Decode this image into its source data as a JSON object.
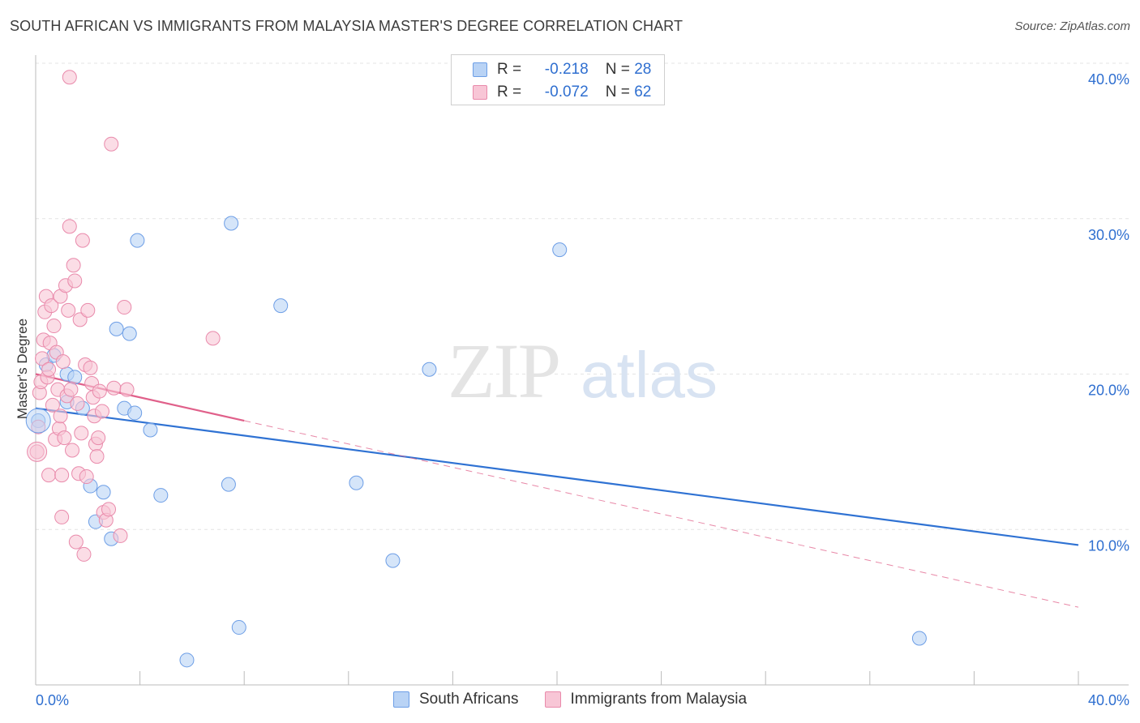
{
  "title": "SOUTH AFRICAN VS IMMIGRANTS FROM MALAYSIA MASTER'S DEGREE CORRELATION CHART",
  "source": "Source: ZipAtlas.com",
  "watermark": {
    "zip": "ZIP",
    "atlas": "atlas"
  },
  "legend_top": [
    {
      "r_label": "R =",
      "r_value": "-0.218",
      "n_label": "N =",
      "n_value": "28"
    },
    {
      "r_label": "R =",
      "r_value": "-0.072",
      "n_label": "N =",
      "n_value": "62"
    }
  ],
  "colors": {
    "blue_fill": "#b9d3f5",
    "blue_stroke": "#6d9ee6",
    "blue_line": "#2f72d3",
    "pink_fill": "#f8c6d6",
    "pink_stroke": "#e98aab",
    "pink_line": "#e0608a",
    "tick_text": "#2f6fd0",
    "grid": "#e4e4e4"
  },
  "chart_data": {
    "type": "scatter",
    "title": "SOUTH AFRICAN VS IMMIGRANTS FROM MALAYSIA MASTER'S DEGREE CORRELATION CHART",
    "xlabel": "",
    "ylabel": "Master's Degree",
    "xlim": [
      0,
      40
    ],
    "ylim": [
      0,
      40
    ],
    "x_tick_labels": [
      "0.0%",
      "40.0%"
    ],
    "y_ticks": [
      10,
      20,
      30,
      40
    ],
    "y_tick_labels": [
      "10.0%",
      "20.0%",
      "30.0%",
      "40.0%"
    ],
    "series": [
      {
        "name": "South Africans",
        "color": "blue",
        "r": -0.218,
        "n": 28,
        "trend": {
          "x0": 0,
          "y0": 17.8,
          "x1": 40,
          "y1": 9.0,
          "dashed_from": null
        },
        "points": [
          [
            0.1,
            17.0
          ],
          [
            0.4,
            20.6
          ],
          [
            0.7,
            21.2
          ],
          [
            1.2,
            20.0
          ],
          [
            1.2,
            18.2
          ],
          [
            1.5,
            19.8
          ],
          [
            1.8,
            17.8
          ],
          [
            2.1,
            12.8
          ],
          [
            2.3,
            10.5
          ],
          [
            2.6,
            12.4
          ],
          [
            2.9,
            9.4
          ],
          [
            3.1,
            22.9
          ],
          [
            3.4,
            17.8
          ],
          [
            3.6,
            22.6
          ],
          [
            3.8,
            17.5
          ],
          [
            3.9,
            28.6
          ],
          [
            4.4,
            16.4
          ],
          [
            4.8,
            12.2
          ],
          [
            5.8,
            1.6
          ],
          [
            7.4,
            12.9
          ],
          [
            7.5,
            29.7
          ],
          [
            7.8,
            3.7
          ],
          [
            9.4,
            24.4
          ],
          [
            12.3,
            13.0
          ],
          [
            13.7,
            8.0
          ],
          [
            15.1,
            20.3
          ],
          [
            20.1,
            28.0
          ],
          [
            33.9,
            3.0
          ]
        ]
      },
      {
        "name": "Immigrants from Malaysia",
        "color": "pink",
        "r": -0.072,
        "n": 62,
        "trend": {
          "x0": 0,
          "y0": 20.0,
          "x1": 40,
          "y1": 5.0,
          "solid_to_x": 8.0
        },
        "points": [
          [
            0.05,
            15.0
          ],
          [
            0.1,
            16.6
          ],
          [
            0.15,
            18.8
          ],
          [
            0.2,
            19.5
          ],
          [
            0.25,
            21.0
          ],
          [
            0.3,
            22.2
          ],
          [
            0.35,
            24.0
          ],
          [
            0.4,
            25.0
          ],
          [
            0.45,
            19.8
          ],
          [
            0.5,
            13.5
          ],
          [
            0.5,
            20.3
          ],
          [
            0.55,
            22.0
          ],
          [
            0.6,
            24.4
          ],
          [
            0.65,
            18.0
          ],
          [
            0.7,
            23.1
          ],
          [
            0.75,
            15.8
          ],
          [
            0.8,
            21.4
          ],
          [
            0.85,
            19.0
          ],
          [
            0.9,
            16.5
          ],
          [
            0.95,
            17.3
          ],
          [
            0.95,
            25.0
          ],
          [
            1.0,
            13.5
          ],
          [
            1.0,
            10.8
          ],
          [
            1.05,
            20.8
          ],
          [
            1.1,
            15.9
          ],
          [
            1.15,
            25.7
          ],
          [
            1.2,
            18.6
          ],
          [
            1.25,
            24.1
          ],
          [
            1.3,
            29.5
          ],
          [
            1.35,
            19.0
          ],
          [
            1.4,
            15.1
          ],
          [
            1.45,
            27.0
          ],
          [
            1.5,
            26.0
          ],
          [
            1.55,
            9.2
          ],
          [
            1.6,
            18.1
          ],
          [
            1.65,
            13.6
          ],
          [
            1.7,
            23.5
          ],
          [
            1.75,
            16.2
          ],
          [
            1.8,
            28.6
          ],
          [
            1.85,
            8.4
          ],
          [
            1.9,
            20.6
          ],
          [
            1.95,
            13.4
          ],
          [
            2.0,
            24.1
          ],
          [
            2.1,
            20.4
          ],
          [
            2.15,
            19.4
          ],
          [
            2.2,
            18.5
          ],
          [
            2.25,
            17.3
          ],
          [
            2.3,
            15.5
          ],
          [
            2.35,
            14.7
          ],
          [
            2.4,
            15.9
          ],
          [
            2.45,
            18.9
          ],
          [
            2.55,
            17.6
          ],
          [
            2.6,
            11.1
          ],
          [
            2.7,
            10.6
          ],
          [
            2.8,
            11.3
          ],
          [
            2.9,
            34.8
          ],
          [
            3.0,
            19.1
          ],
          [
            3.25,
            9.6
          ],
          [
            3.4,
            24.3
          ],
          [
            3.5,
            19.0
          ],
          [
            6.8,
            22.3
          ],
          [
            1.3,
            39.1
          ]
        ]
      }
    ]
  },
  "bottom_legend": [
    "South Africans",
    "Immigrants from Malaysia"
  ]
}
